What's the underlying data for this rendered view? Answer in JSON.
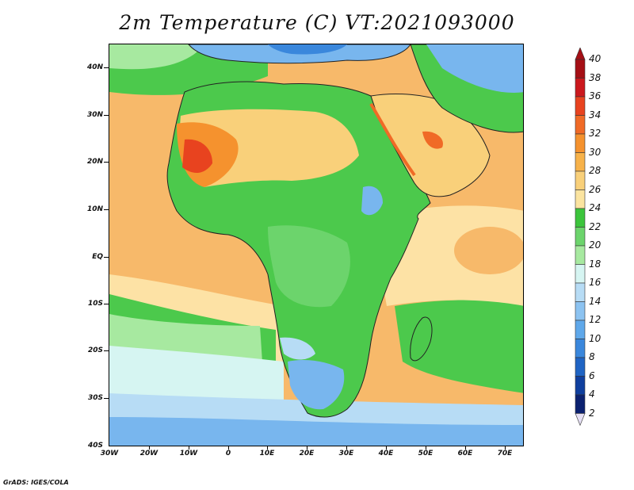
{
  "title": "2m Temperature (C) VT:2021093000",
  "credit": "GrADS: IGES/COLA",
  "lat_axis": [
    "40N",
    "30N",
    "20N",
    "10N",
    "EQ",
    "10S",
    "20S",
    "30S",
    "40S"
  ],
  "lon_axis": [
    "30W",
    "20W",
    "10W",
    "0",
    "10E",
    "20E",
    "30E",
    "40E",
    "50E",
    "60E",
    "70E"
  ],
  "colorbar": {
    "levels": [
      "40",
      "38",
      "36",
      "34",
      "32",
      "30",
      "28",
      "26",
      "24",
      "22",
      "20",
      "18",
      "16",
      "14",
      "12",
      "10",
      "8",
      "6",
      "4",
      "2"
    ],
    "colors": [
      "#a50f15",
      "#cb181d",
      "#e8431f",
      "#f06a26",
      "#f5922e",
      "#f7b24a",
      "#f9d07a",
      "#fbe4a0",
      "#3cc53c",
      "#6cd46c",
      "#a7e9a0",
      "#d6f5f2",
      "#b7dcf5",
      "#8cc3f1",
      "#5fa8ea",
      "#3a87dc",
      "#1f64c4",
      "#0f3f9e",
      "#0b2170",
      "#e6e0f5"
    ]
  },
  "colors": {
    "ocean_warm": "#f7b96a",
    "ocean_mid": "#fde2a5",
    "green": "#4cc94c",
    "light_green": "#a7e9a0",
    "cool": "#d6f5f2",
    "blue": "#78b6ee",
    "dark_blue": "#3a87dc",
    "hot": "#f08a35"
  }
}
